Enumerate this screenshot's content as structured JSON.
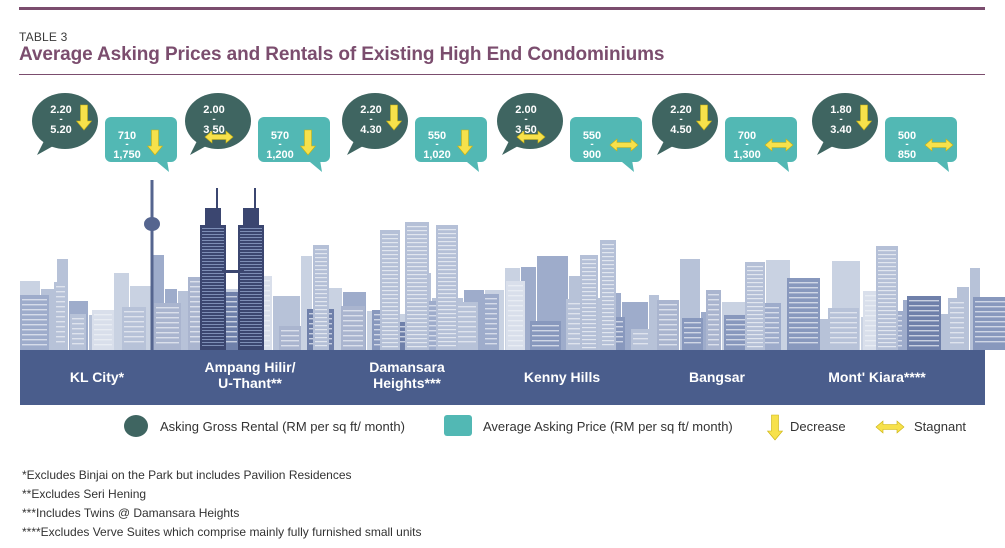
{
  "header": {
    "label": "TABLE 3",
    "title": "Average Asking Prices and Rentals of Existing High End Condominiums"
  },
  "colors": {
    "accent": "#7b4d6e",
    "rental_bubble": "#3f6561",
    "price_bubble": "#52b8b4",
    "arrow": "#f7e14b",
    "band": "#4a5d8c"
  },
  "chart_data": {
    "type": "table",
    "title": "Average Asking Prices and Rentals of Existing High End Condominiums",
    "series_meta": {
      "rental": "Asking Gross Rental (RM per sq ft/ month)",
      "price": "Average Asking Price (RM per sq ft/ month)"
    },
    "locations": [
      {
        "name_lines": [
          "KL City*"
        ],
        "rental": {
          "low": "2.20",
          "high": "5.20",
          "trend": "Decrease"
        },
        "price": {
          "low": "710",
          "high": "1,750",
          "trend": "Decrease"
        }
      },
      {
        "name_lines": [
          "Ampang Hilir/",
          "U-Thant**"
        ],
        "rental": {
          "low": "2.00",
          "high": "3.50",
          "trend": "Stagnant"
        },
        "price": {
          "low": "570",
          "high": "1,200",
          "trend": "Decrease"
        }
      },
      {
        "name_lines": [
          "Damansara",
          "Heights***"
        ],
        "rental": {
          "low": "2.20",
          "high": "4.30",
          "trend": "Decrease"
        },
        "price": {
          "low": "550",
          "high": "1,020",
          "trend": "Decrease"
        }
      },
      {
        "name_lines": [
          "Kenny Hills"
        ],
        "rental": {
          "low": "2.00",
          "high": "3.50",
          "trend": "Stagnant"
        },
        "price": {
          "low": "550",
          "high": "900",
          "trend": "Stagnant"
        }
      },
      {
        "name_lines": [
          "Bangsar"
        ],
        "rental": {
          "low": "2.20",
          "high": "4.50",
          "trend": "Decrease"
        },
        "price": {
          "low": "700",
          "high": "1,300",
          "trend": "Stagnant"
        }
      },
      {
        "name_lines": [
          "Mont' Kiara****"
        ],
        "rental": {
          "low": "1.80",
          "high": "3.40",
          "trend": "Decrease"
        },
        "price": {
          "low": "500",
          "high": "850",
          "trend": "Stagnant"
        }
      }
    ],
    "range_separator": "-"
  },
  "legend": {
    "rental": "Asking Gross Rental (RM per sq ft/ month)",
    "price": "Average Asking Price (RM per sq ft/ month)",
    "decrease": "Decrease",
    "stagnant": "Stagnant"
  },
  "footnotes": [
    "*Excludes Binjai on the Park but includes Pavilion Residences",
    "**Excludes Seri Hening",
    "***Includes Twins @ Damansara Heights",
    "****Excludes Verve Suites which comprise mainly fully furnished small units"
  ]
}
